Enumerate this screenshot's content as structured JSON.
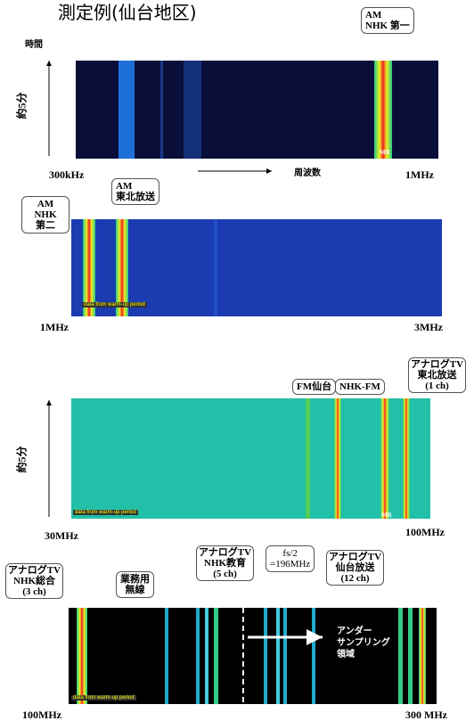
{
  "header": {
    "title": "測定例(仙台地区)"
  },
  "panel1": {
    "time_label": "時間",
    "duration": "約5分",
    "callout": "AM\nNHK 第一",
    "x_start": "300kHz",
    "x_axis": "周波数",
    "x_end": "1MHz",
    "marker": "MR"
  },
  "panel2": {
    "callouts": [
      "AM\nNHK\n第二",
      "AM\n東北放送"
    ],
    "note": "data from warm-up period",
    "x_start": "1MHz",
    "x_end": "3MHz"
  },
  "panel3": {
    "duration": "約5分",
    "callouts": [
      "FM仙台",
      "NHK-FM",
      "アナログTV\n東北放送\n(1 ch)"
    ],
    "note": "data from warm-up period",
    "marker": "MR",
    "x_start": "30MHz",
    "x_end": "100MHz"
  },
  "panel4": {
    "callouts": [
      "アナログTV\nNHK総合\n(3 ch)",
      "業務用\n無線",
      "アナログTV\nNHK教育\n(5 ch)",
      "fs/2\n=196MHz",
      "アナログTV\n仙台放送\n(12 ch)"
    ],
    "region": "アンダー\nサンプリング\n領域",
    "note": "data from warm-up period",
    "x_start": "100MHz",
    "x_end": "300 MHz"
  }
}
